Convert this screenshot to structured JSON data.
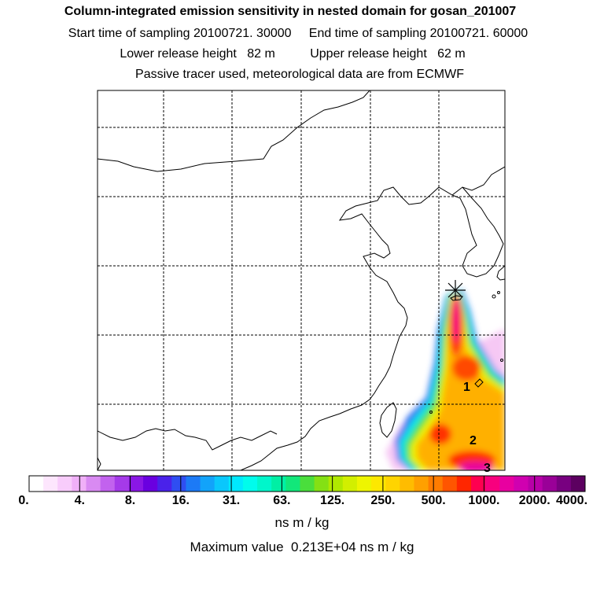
{
  "chart_data": {
    "type": "heatmap",
    "title": "Column-integrated emission sensitivity in nested domain for gosan_201007",
    "subtitle_lines": [
      "Start time of sampling 20100721. 30000     End time of sampling 20100721. 60000",
      "Lower release height   82 m          Upper release height   62 m",
      "Passive tracer used, meteorological data are from ECMWF"
    ],
    "colorbar": {
      "tick_labels": [
        "0.",
        "4.",
        "8.",
        "16.",
        "31.",
        "63.",
        "125.",
        "250.",
        "500.",
        "1000.",
        "2000.",
        "4000."
      ],
      "colors": [
        "#ffffff",
        "#fde6fd",
        "#f8ccfb",
        "#f0b0f8",
        "#d98af2",
        "#c262ee",
        "#a53ae9",
        "#8a17e5",
        "#6a00e0",
        "#4a22ea",
        "#2f4ef2",
        "#1c7af6",
        "#12a3fa",
        "#0ac7fc",
        "#00e8fd",
        "#00fcec",
        "#00f6cb",
        "#00efa4",
        "#12e77a",
        "#4ade3c",
        "#84e014",
        "#b0e800",
        "#d2ef00",
        "#eef500",
        "#fde800",
        "#ffd400",
        "#ffbc00",
        "#ffa000",
        "#ff7c00",
        "#ff5500",
        "#ff2600",
        "#ff0050",
        "#f8007e",
        "#e800a0",
        "#d000b0",
        "#b800a8",
        "#9a0098",
        "#780080",
        "#5c0060"
      ],
      "unit": "ns m / kg"
    },
    "max_value_text": "Maximum value  0.213E+04 ns m / kg",
    "release_site": "Gosan",
    "map_labels": [
      "1",
      "2",
      "3"
    ],
    "grid": true
  }
}
